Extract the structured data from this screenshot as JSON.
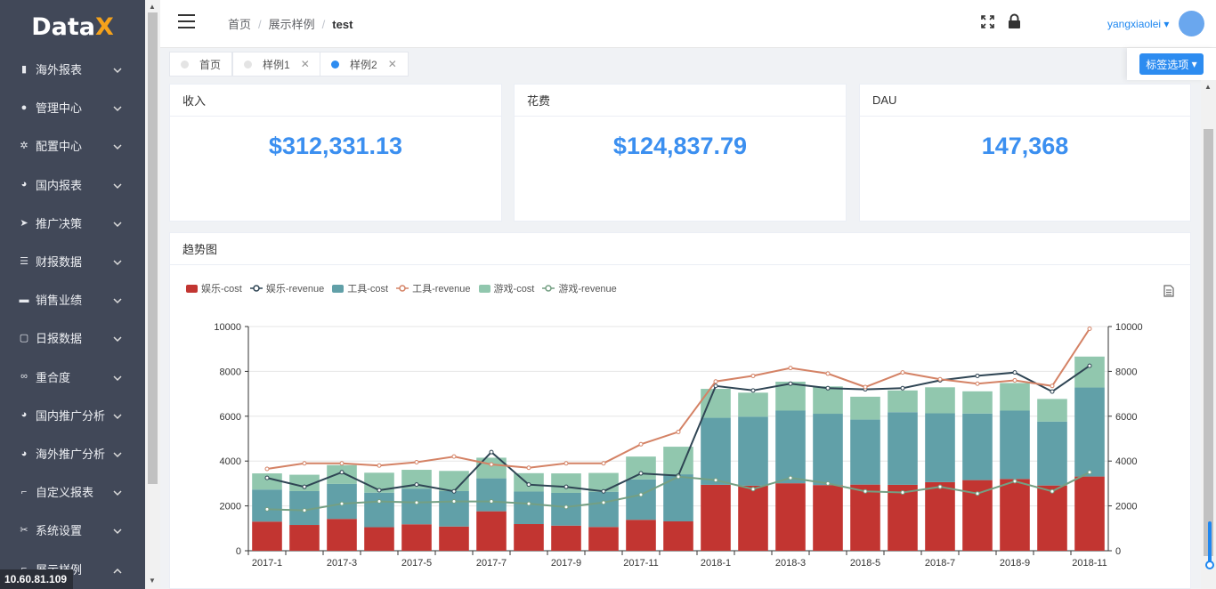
{
  "app": {
    "logo_main": "Data",
    "logo_accent": "X",
    "ip": "10.60.81.109"
  },
  "sidebar": {
    "items": [
      {
        "label": "海外报表",
        "icon": "bar-chart-icon"
      },
      {
        "label": "管理中心",
        "icon": "user-group-icon"
      },
      {
        "label": "配置中心",
        "icon": "gear-icon"
      },
      {
        "label": "国内报表",
        "icon": "pie-chart-icon"
      },
      {
        "label": "推广决策",
        "icon": "paper-plane-icon"
      },
      {
        "label": "财报数据",
        "icon": "list-icon"
      },
      {
        "label": "销售业绩",
        "icon": "card-icon"
      },
      {
        "label": "日报数据",
        "icon": "calendar-icon"
      },
      {
        "label": "重合度",
        "icon": "overlap-icon"
      },
      {
        "label": "国内推广分析",
        "icon": "pie-chart-icon"
      },
      {
        "label": "海外推广分析",
        "icon": "pie-chart-icon"
      },
      {
        "label": "自定义报表",
        "icon": "crop-icon"
      },
      {
        "label": "系统设置",
        "icon": "tools-icon"
      },
      {
        "label": "展示样例",
        "icon": "crop-icon"
      }
    ]
  },
  "header": {
    "breadcrumb": [
      "首页",
      "展示样例",
      "test"
    ],
    "user": "yangxiaolei"
  },
  "tags": {
    "items": [
      {
        "label": "首页",
        "active": false,
        "closable": false
      },
      {
        "label": "样例1",
        "active": false,
        "closable": true
      },
      {
        "label": "样例2",
        "active": true,
        "closable": true
      }
    ],
    "options_label": "标签选项"
  },
  "stats": [
    {
      "title": "收入",
      "value": "$312,331.13"
    },
    {
      "title": "花费",
      "value": "$124,837.79"
    },
    {
      "title": "DAU",
      "value": "147,368"
    }
  ],
  "trend": {
    "title": "趋势图"
  },
  "colors": {
    "ent_cost": "#c23531",
    "ent_rev": "#2f4554",
    "tool_cost": "#61a0a8",
    "tool_rev": "#d48265",
    "game_cost": "#91c7ae",
    "game_rev": "#749f83",
    "accent": "#2d8cf0"
  },
  "chart_data": {
    "type": "bar",
    "categories": [
      "2017-1",
      "2017-2",
      "2017-3",
      "2017-4",
      "2017-5",
      "2017-6",
      "2017-7",
      "2017-8",
      "2017-9",
      "2017-10",
      "2017-11",
      "2017-12",
      "2018-1",
      "2018-2",
      "2018-3",
      "2018-4",
      "2018-5",
      "2018-6",
      "2018-7",
      "2018-8",
      "2018-9",
      "2018-10",
      "2018-11"
    ],
    "x_tick_labels": [
      "2017-1",
      "2017-3",
      "2017-5",
      "2017-7",
      "2017-9",
      "2017-11",
      "2018-1",
      "2018-3",
      "2018-5",
      "2018-7",
      "2018-9",
      "2018-11"
    ],
    "ylim": [
      0,
      10000
    ],
    "y_ticks": [
      0,
      2000,
      4000,
      6000,
      8000,
      10000
    ],
    "y2lim": [
      0,
      10000
    ],
    "legend_position": "top-left",
    "grid": true,
    "stacked_bars": [
      {
        "name": "娱乐-cost",
        "values": [
          1300,
          1150,
          1420,
          1050,
          1180,
          1080,
          1760,
          1190,
          1120,
          1060,
          1380,
          1310,
          2940,
          2900,
          3010,
          2930,
          2950,
          2940,
          3060,
          3150,
          3200,
          2910,
          3310
        ]
      },
      {
        "name": "工具-cost",
        "values": [
          1430,
          1510,
          1560,
          1540,
          1590,
          1580,
          1470,
          1450,
          1460,
          1570,
          1800,
          2100,
          2990,
          3080,
          3240,
          3180,
          2900,
          3240,
          3070,
          2970,
          3050,
          2850,
          3970
        ]
      },
      {
        "name": "游戏-cost",
        "values": [
          720,
          730,
          840,
          890,
          840,
          900,
          920,
          820,
          870,
          840,
          1020,
          1230,
          1290,
          1070,
          1290,
          1220,
          1020,
          970,
          1160,
          990,
          1230,
          1010,
          1380
        ]
      }
    ],
    "lines": [
      {
        "name": "娱乐-revenue",
        "values": [
          3250,
          2850,
          3500,
          2700,
          2950,
          2650,
          4400,
          2950,
          2850,
          2650,
          3450,
          3350,
          7350,
          7150,
          7450,
          7250,
          7200,
          7250,
          7600,
          7800,
          7950,
          7100,
          8250
        ]
      },
      {
        "name": "工具-revenue",
        "values": [
          3650,
          3900,
          3900,
          3800,
          3950,
          4200,
          3850,
          3700,
          3900,
          3900,
          4750,
          5300,
          7550,
          7800,
          8150,
          7900,
          7300,
          7950,
          7650,
          7450,
          7600,
          7350,
          9900
        ]
      },
      {
        "name": "游戏-revenue",
        "values": [
          1850,
          1800,
          2100,
          2200,
          2150,
          2200,
          2200,
          2100,
          1950,
          2150,
          2500,
          3300,
          3150,
          2750,
          3250,
          3000,
          2650,
          2600,
          2850,
          2550,
          3100,
          2650,
          3500
        ]
      }
    ]
  }
}
